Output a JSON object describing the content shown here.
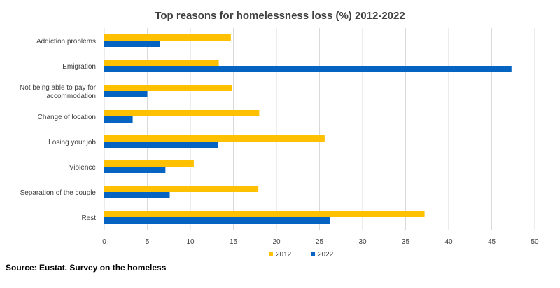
{
  "chart_data": {
    "type": "bar",
    "orientation": "horizontal",
    "title": "Top reasons for homelessness loss (%) 2012-2022",
    "categories": [
      "Addiction problems",
      "Emigration",
      "Not being able to pay for accommodation",
      "Change of location",
      "Losing your job",
      "Violence",
      "Separation of the couple",
      "Rest"
    ],
    "category_lines": [
      [
        "Addiction problems"
      ],
      [
        "Emigration"
      ],
      [
        "Not being able to pay for",
        "accommodation"
      ],
      [
        "Change of location"
      ],
      [
        "Losing your job"
      ],
      [
        "Violence"
      ],
      [
        "Separation of the couple"
      ],
      [
        "Rest"
      ]
    ],
    "series": [
      {
        "name": "2012",
        "color": "#FFC000",
        "values": [
          14.7,
          13.3,
          14.8,
          18.0,
          25.6,
          10.4,
          17.9,
          37.2
        ]
      },
      {
        "name": "2022",
        "color": "#0563C1",
        "values": [
          6.5,
          47.3,
          5.0,
          3.3,
          13.2,
          7.1,
          7.6,
          26.2
        ]
      }
    ],
    "xlim": [
      0,
      50
    ],
    "xticks": [
      "0",
      "5",
      "10",
      "15",
      "20",
      "25",
      "30",
      "35",
      "40",
      "45",
      "50"
    ],
    "xlabel": "",
    "ylabel": "",
    "grid": true,
    "legend_position": "bottom"
  },
  "source": "Source: Eustat. Survey on the homeless"
}
